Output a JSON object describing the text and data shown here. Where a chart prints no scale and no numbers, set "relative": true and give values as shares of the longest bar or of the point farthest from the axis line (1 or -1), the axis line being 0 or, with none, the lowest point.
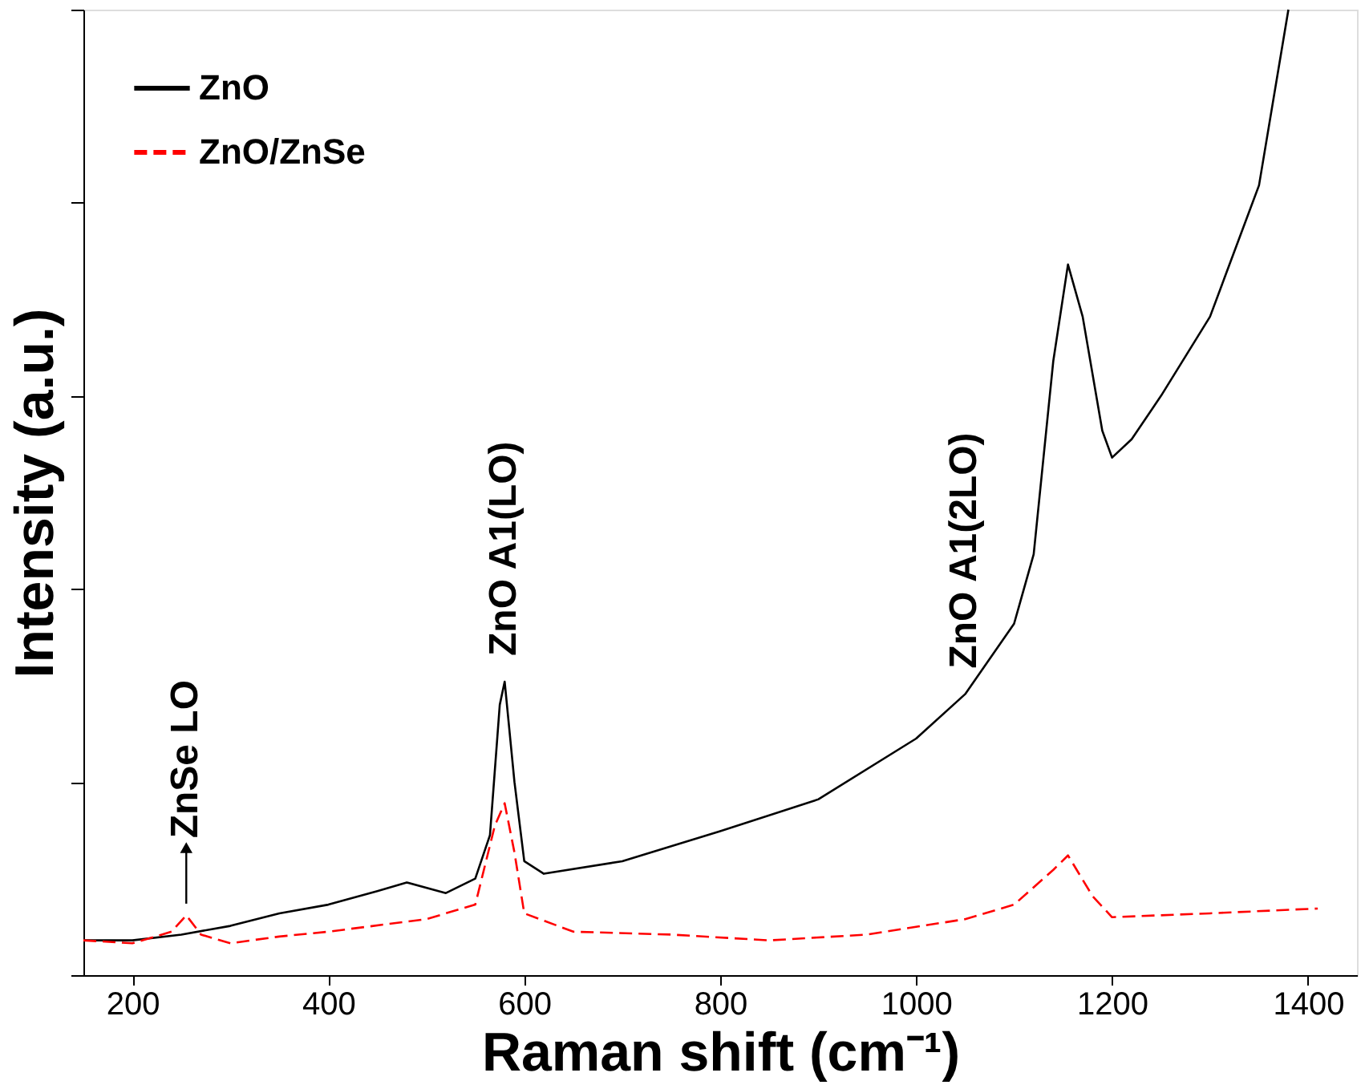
{
  "chart_data": {
    "type": "line",
    "relative": true,
    "xlabel": "Raman shift (cm⁻¹)",
    "ylabel": "Intensity (a.u.)",
    "xlim": [
      150,
      1450
    ],
    "xticks": [
      200,
      400,
      600,
      800,
      1000,
      1200,
      1400
    ],
    "grid": false,
    "legend": "top left",
    "marker": "none",
    "annotations": [
      {
        "text": "ZnSe LO",
        "x": 255,
        "y": 0.062
      },
      {
        "text": "ZnO A1(LO)",
        "x": 580,
        "y": 0.304
      },
      {
        "text": "ZnO A1(2LO)",
        "x": 1050,
        "y": 0.291
      }
    ],
    "series": [
      {
        "name": "ZnO",
        "color": "#000000",
        "line_style": "solid",
        "x": [
          150,
          200,
          250,
          300,
          350,
          400,
          450,
          480,
          520,
          550,
          565,
          575,
          580,
          590,
          600,
          620,
          700,
          800,
          900,
          1000,
          1050,
          1100,
          1120,
          1140,
          1155,
          1170,
          1190,
          1200,
          1220,
          1250,
          1300,
          1350,
          1380
        ],
        "values": [
          0.036,
          0.036,
          0.042,
          0.051,
          0.064,
          0.073,
          0.087,
          0.096,
          0.085,
          0.1,
          0.145,
          0.28,
          0.304,
          0.2,
          0.118,
          0.105,
          0.118,
          0.149,
          0.182,
          0.245,
          0.291,
          0.364,
          0.436,
          0.636,
          0.736,
          0.682,
          0.564,
          0.536,
          0.555,
          0.6,
          0.682,
          0.818,
          1.0
        ]
      },
      {
        "name": "ZnO/ZnSe",
        "color": "#ff0000",
        "line_style": "dashed",
        "x": [
          150,
          200,
          240,
          255,
          270,
          300,
          350,
          400,
          500,
          550,
          570,
          580,
          590,
          600,
          650,
          750,
          850,
          950,
          1050,
          1100,
          1140,
          1155,
          1180,
          1200,
          1300,
          1410
        ],
        "values": [
          0.036,
          0.033,
          0.045,
          0.062,
          0.042,
          0.033,
          0.04,
          0.045,
          0.058,
          0.073,
          0.155,
          0.178,
          0.127,
          0.064,
          0.045,
          0.042,
          0.036,
          0.042,
          0.058,
          0.073,
          0.109,
          0.124,
          0.082,
          0.06,
          0.064,
          0.069
        ]
      }
    ]
  }
}
